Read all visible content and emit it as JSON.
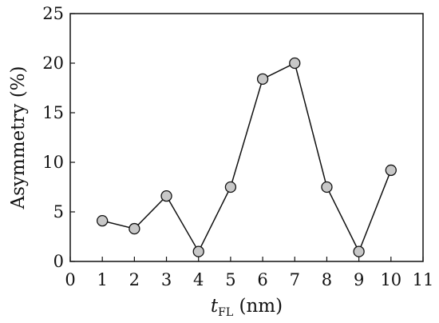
{
  "chart_data": {
    "type": "line",
    "title": "",
    "xlabel_main": "t",
    "xlabel_sub": "FL",
    "xlabel_unit": " (nm)",
    "ylabel": "Asymmetry (%)",
    "x": [
      1,
      2,
      3,
      4,
      5,
      6,
      7,
      8,
      9,
      10
    ],
    "series": [
      {
        "values": [
          4.1,
          3.3,
          6.6,
          1.0,
          7.5,
          18.4,
          20.0,
          7.5,
          1.0,
          9.2
        ]
      }
    ],
    "xlim": [
      0,
      11
    ],
    "ylim": [
      0,
      25
    ],
    "xticks": [
      "0",
      "1",
      "2",
      "3",
      "4",
      "5",
      "6",
      "7",
      "8",
      "9",
      "10",
      "11"
    ],
    "yticks": [
      "0",
      "5",
      "10",
      "15",
      "20",
      "25"
    ],
    "grid": false,
    "marker_fill": "#c8c8c8",
    "line_color": "#111111"
  }
}
